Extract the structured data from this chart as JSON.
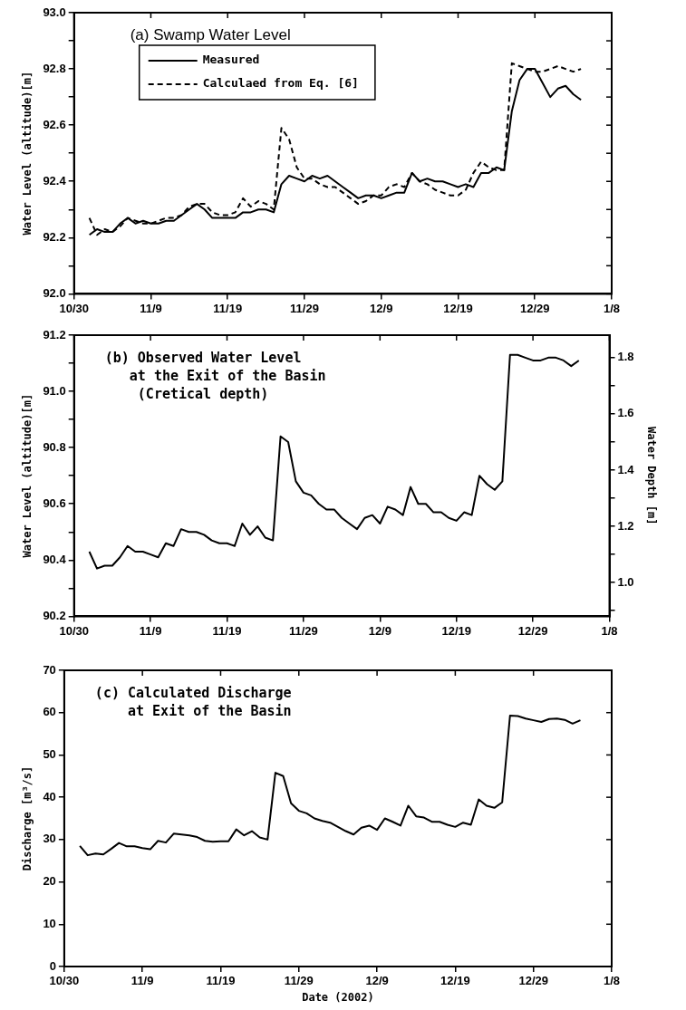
{
  "chart_data": [
    {
      "type": "line",
      "title": "(a) Swamp Water Level",
      "ylabel": "Water Level (altitude)[m]",
      "legend": "top left",
      "marker": "none",
      "grid": false,
      "x": [
        "2002-11-01",
        "2002-11-02",
        "2002-11-03",
        "2002-11-04",
        "2002-11-05",
        "2002-11-06",
        "2002-11-07",
        "2002-11-08",
        "2002-11-09",
        "2002-11-10",
        "2002-11-11",
        "2002-11-12",
        "2002-11-13",
        "2002-11-14",
        "2002-11-15",
        "2002-11-16",
        "2002-11-17",
        "2002-11-18",
        "2002-11-19",
        "2002-11-20",
        "2002-11-21",
        "2002-11-22",
        "2002-11-23",
        "2002-11-24",
        "2002-11-25",
        "2002-11-26",
        "2002-11-27",
        "2002-11-28",
        "2002-11-29",
        "2002-11-30",
        "2002-12-01",
        "2002-12-02",
        "2002-12-03",
        "2002-12-04",
        "2002-12-05",
        "2002-12-06",
        "2002-12-07",
        "2002-12-08",
        "2002-12-09",
        "2002-12-10",
        "2002-12-11",
        "2002-12-12",
        "2002-12-13",
        "2002-12-14",
        "2002-12-15",
        "2002-12-16",
        "2002-12-17",
        "2002-12-18",
        "2002-12-19",
        "2002-12-20",
        "2002-12-21",
        "2002-12-22",
        "2002-12-23",
        "2002-12-24",
        "2002-12-25",
        "2002-12-26",
        "2002-12-27",
        "2002-12-28",
        "2002-12-29",
        "2002-12-30",
        "2002-12-31",
        "2003-01-01",
        "2003-01-02",
        "2003-01-03",
        "2003-01-04"
      ],
      "series": [
        {
          "name": "Measured",
          "color": "#000000",
          "line_style": "solid",
          "values": [
            92.21,
            92.23,
            92.22,
            92.22,
            92.25,
            92.27,
            92.25,
            92.26,
            92.25,
            92.25,
            92.26,
            92.26,
            92.28,
            92.3,
            92.32,
            92.3,
            92.27,
            92.27,
            92.27,
            92.27,
            92.29,
            92.29,
            92.3,
            92.3,
            92.29,
            92.39,
            92.42,
            92.41,
            92.4,
            92.42,
            92.41,
            92.42,
            92.4,
            92.38,
            92.36,
            92.34,
            92.35,
            92.35,
            92.34,
            92.35,
            92.36,
            92.36,
            92.43,
            92.4,
            92.41,
            92.4,
            92.4,
            92.39,
            92.38,
            92.39,
            92.38,
            92.43,
            92.43,
            92.45,
            92.44,
            92.65,
            92.76,
            92.8,
            92.8,
            92.75,
            92.7,
            92.73,
            92.74,
            92.71,
            92.69
          ]
        },
        {
          "name": "Calculaed from Eq. [6]",
          "color": "#000000",
          "line_style": "dashed",
          "values": [
            92.27,
            92.21,
            92.23,
            92.22,
            92.24,
            92.27,
            92.26,
            92.25,
            92.25,
            92.26,
            92.27,
            92.27,
            92.28,
            92.31,
            92.32,
            92.32,
            92.29,
            92.28,
            92.28,
            92.29,
            92.34,
            92.31,
            92.33,
            92.32,
            92.3,
            92.59,
            92.55,
            92.45,
            92.41,
            92.41,
            92.39,
            92.38,
            92.38,
            92.36,
            92.34,
            92.32,
            92.33,
            92.35,
            92.35,
            92.38,
            92.39,
            92.38,
            92.43,
            92.4,
            92.39,
            92.37,
            92.36,
            92.35,
            92.35,
            92.37,
            92.43,
            92.47,
            92.45,
            92.44,
            92.44,
            92.82,
            92.81,
            92.8,
            92.79,
            92.79,
            92.8,
            92.81,
            92.8,
            92.79,
            92.8
          ]
        }
      ],
      "xlim": [
        "2002-10-30",
        "2003-01-08"
      ],
      "xticks": [
        {
          "value": "2002-10-30",
          "label": "10/30"
        },
        {
          "value": "2002-11-09",
          "label": "11/9"
        },
        {
          "value": "2002-11-19",
          "label": "11/19"
        },
        {
          "value": "2002-11-29",
          "label": "11/29"
        },
        {
          "value": "2002-12-09",
          "label": "12/9"
        },
        {
          "value": "2002-12-19",
          "label": "12/19"
        },
        {
          "value": "2002-12-29",
          "label": "12/29"
        },
        {
          "value": "2003-01-08",
          "label": "1/8"
        }
      ],
      "ylim": [
        92.0,
        93.0
      ],
      "yticks": [
        {
          "value": 92.0,
          "label": "92.0"
        },
        {
          "value": 92.1,
          "label": null
        },
        {
          "value": 92.2,
          "label": "92.2"
        },
        {
          "value": 92.3,
          "label": null
        },
        {
          "value": 92.4,
          "label": "92.4"
        },
        {
          "value": 92.5,
          "label": null
        },
        {
          "value": 92.6,
          "label": "92.6"
        },
        {
          "value": 92.7,
          "label": null
        },
        {
          "value": 92.8,
          "label": "92.8"
        },
        {
          "value": 92.9,
          "label": null
        },
        {
          "value": 93.0,
          "label": "93.0"
        }
      ]
    },
    {
      "type": "line",
      "title": "(b) Observed Water Level\n   at the Exit of the Basin\n    (Cretical depth)",
      "ylabel": "Water Level (altitude)[m]",
      "y2label": "Water Depth [m]",
      "marker": "none",
      "grid": false,
      "x": [
        "2002-11-01",
        "2002-11-02",
        "2002-11-03",
        "2002-11-04",
        "2002-11-05",
        "2002-11-06",
        "2002-11-07",
        "2002-11-08",
        "2002-11-09",
        "2002-11-10",
        "2002-11-11",
        "2002-11-12",
        "2002-11-13",
        "2002-11-14",
        "2002-11-15",
        "2002-11-16",
        "2002-11-17",
        "2002-11-18",
        "2002-11-19",
        "2002-11-20",
        "2002-11-21",
        "2002-11-22",
        "2002-11-23",
        "2002-11-24",
        "2002-11-25",
        "2002-11-26",
        "2002-11-27",
        "2002-11-28",
        "2002-11-29",
        "2002-11-30",
        "2002-12-01",
        "2002-12-02",
        "2002-12-03",
        "2002-12-04",
        "2002-12-05",
        "2002-12-06",
        "2002-12-07",
        "2002-12-08",
        "2002-12-09",
        "2002-12-10",
        "2002-12-11",
        "2002-12-12",
        "2002-12-13",
        "2002-12-14",
        "2002-12-15",
        "2002-12-16",
        "2002-12-17",
        "2002-12-18",
        "2002-12-19",
        "2002-12-20",
        "2002-12-21",
        "2002-12-22",
        "2002-12-23",
        "2002-12-24",
        "2002-12-25",
        "2002-12-26",
        "2002-12-27",
        "2002-12-28",
        "2002-12-29",
        "2002-12-30",
        "2002-12-31",
        "2003-01-01",
        "2003-01-02",
        "2003-01-03",
        "2003-01-04"
      ],
      "series": [
        {
          "color": "#000000",
          "line_style": "solid",
          "values": [
            90.43,
            90.37,
            90.38,
            90.38,
            90.41,
            90.45,
            90.43,
            90.43,
            90.42,
            90.41,
            90.46,
            90.45,
            90.51,
            90.5,
            90.5,
            90.49,
            90.47,
            90.46,
            90.46,
            90.45,
            90.53,
            90.49,
            90.52,
            90.48,
            90.47,
            90.84,
            90.82,
            90.68,
            90.64,
            90.63,
            90.6,
            90.58,
            90.58,
            90.55,
            90.53,
            90.51,
            90.55,
            90.56,
            90.53,
            90.59,
            90.58,
            90.56,
            90.66,
            90.6,
            90.6,
            90.57,
            90.57,
            90.55,
            90.54,
            90.57,
            90.56,
            90.7,
            90.67,
            90.65,
            90.68,
            91.13,
            91.13,
            91.12,
            91.11,
            91.11,
            91.12,
            91.12,
            91.11,
            91.09,
            91.11
          ]
        }
      ],
      "xlim": [
        "2002-10-30",
        "2003-01-08"
      ],
      "xticks": [
        {
          "value": "2002-10-30",
          "label": "10/30"
        },
        {
          "value": "2002-11-09",
          "label": "11/9"
        },
        {
          "value": "2002-11-19",
          "label": "11/19"
        },
        {
          "value": "2002-11-29",
          "label": "11/29"
        },
        {
          "value": "2002-12-09",
          "label": "12/9"
        },
        {
          "value": "2002-12-19",
          "label": "12/19"
        },
        {
          "value": "2002-12-29",
          "label": "12/29"
        },
        {
          "value": "2003-01-08",
          "label": "1/8"
        }
      ],
      "ylim": [
        90.2,
        91.2
      ],
      "yticks": [
        {
          "value": 90.2,
          "label": "90.2"
        },
        {
          "value": 90.3,
          "label": null
        },
        {
          "value": 90.4,
          "label": "90.4"
        },
        {
          "value": 90.5,
          "label": null
        },
        {
          "value": 90.6,
          "label": "90.6"
        },
        {
          "value": 90.7,
          "label": null
        },
        {
          "value": 90.8,
          "label": "90.8"
        },
        {
          "value": 90.9,
          "label": null
        },
        {
          "value": 91.0,
          "label": "91.0"
        },
        {
          "value": 91.1,
          "label": null
        },
        {
          "value": 91.2,
          "label": "91.2"
        }
      ],
      "y2lim": [
        0.88,
        1.88
      ],
      "y2ticks": [
        {
          "value": 0.9,
          "label": null
        },
        {
          "value": 1.0,
          "label": "1.0"
        },
        {
          "value": 1.1,
          "label": null
        },
        {
          "value": 1.2,
          "label": "1.2"
        },
        {
          "value": 1.3,
          "label": null
        },
        {
          "value": 1.4,
          "label": "1.4"
        },
        {
          "value": 1.5,
          "label": null
        },
        {
          "value": 1.6,
          "label": "1.6"
        },
        {
          "value": 1.7,
          "label": null
        },
        {
          "value": 1.8,
          "label": "1.8"
        }
      ]
    },
    {
      "type": "line",
      "title": "(c) Calculated Discharge\n    at Exit of the Basin",
      "ylabel": "Discharge [m³/s]",
      "xlabel": "Date (2002)",
      "marker": "none",
      "grid": false,
      "x": [
        "2002-11-01",
        "2002-11-02",
        "2002-11-03",
        "2002-11-04",
        "2002-11-05",
        "2002-11-06",
        "2002-11-07",
        "2002-11-08",
        "2002-11-09",
        "2002-11-10",
        "2002-11-11",
        "2002-11-12",
        "2002-11-13",
        "2002-11-14",
        "2002-11-15",
        "2002-11-16",
        "2002-11-17",
        "2002-11-18",
        "2002-11-19",
        "2002-11-20",
        "2002-11-21",
        "2002-11-22",
        "2002-11-23",
        "2002-11-24",
        "2002-11-25",
        "2002-11-26",
        "2002-11-27",
        "2002-11-28",
        "2002-11-29",
        "2002-11-30",
        "2002-12-01",
        "2002-12-02",
        "2002-12-03",
        "2002-12-04",
        "2002-12-05",
        "2002-12-06",
        "2002-12-07",
        "2002-12-08",
        "2002-12-09",
        "2002-12-10",
        "2002-12-11",
        "2002-12-12",
        "2002-12-13",
        "2002-12-14",
        "2002-12-15",
        "2002-12-16",
        "2002-12-17",
        "2002-12-18",
        "2002-12-19",
        "2002-12-20",
        "2002-12-21",
        "2002-12-22",
        "2002-12-23",
        "2002-12-24",
        "2002-12-25",
        "2002-12-26",
        "2002-12-27",
        "2002-12-28",
        "2002-12-29",
        "2002-12-30",
        "2002-12-31",
        "2003-01-01",
        "2003-01-02",
        "2003-01-03",
        "2003-01-04"
      ],
      "series": [
        {
          "color": "#000000",
          "line_style": "solid",
          "values": [
            28.5,
            26.3,
            26.7,
            26.5,
            27.8,
            29.2,
            28.4,
            28.4,
            28.0,
            27.7,
            29.7,
            29.3,
            31.4,
            31.2,
            31.0,
            30.6,
            29.7,
            29.5,
            29.6,
            29.6,
            32.4,
            31.0,
            32.0,
            30.5,
            30.0,
            45.8,
            45.0,
            38.6,
            36.8,
            36.2,
            35.0,
            34.4,
            34.0,
            33.0,
            32.0,
            31.2,
            32.8,
            33.3,
            32.3,
            35.0,
            34.2,
            33.3,
            38.0,
            35.5,
            35.2,
            34.2,
            34.2,
            33.5,
            33.0,
            34.0,
            33.5,
            39.5,
            38.0,
            37.5,
            38.8,
            59.3,
            59.2,
            58.6,
            58.2,
            57.8,
            58.5,
            58.6,
            58.3,
            57.4,
            58.2
          ]
        }
      ],
      "xlim": [
        "2002-10-30",
        "2003-01-08"
      ],
      "xticks": [
        {
          "value": "2002-10-30",
          "label": "10/30"
        },
        {
          "value": "2002-11-09",
          "label": "11/9"
        },
        {
          "value": "2002-11-19",
          "label": "11/19"
        },
        {
          "value": "2002-11-29",
          "label": "11/29"
        },
        {
          "value": "2002-12-09",
          "label": "12/9"
        },
        {
          "value": "2002-12-19",
          "label": "12/19"
        },
        {
          "value": "2002-12-29",
          "label": "12/29"
        },
        {
          "value": "2003-01-08",
          "label": "1/8"
        }
      ],
      "ylim": [
        0,
        70
      ],
      "yticks": [
        0,
        10,
        20,
        30,
        40,
        50,
        60,
        70
      ]
    }
  ]
}
